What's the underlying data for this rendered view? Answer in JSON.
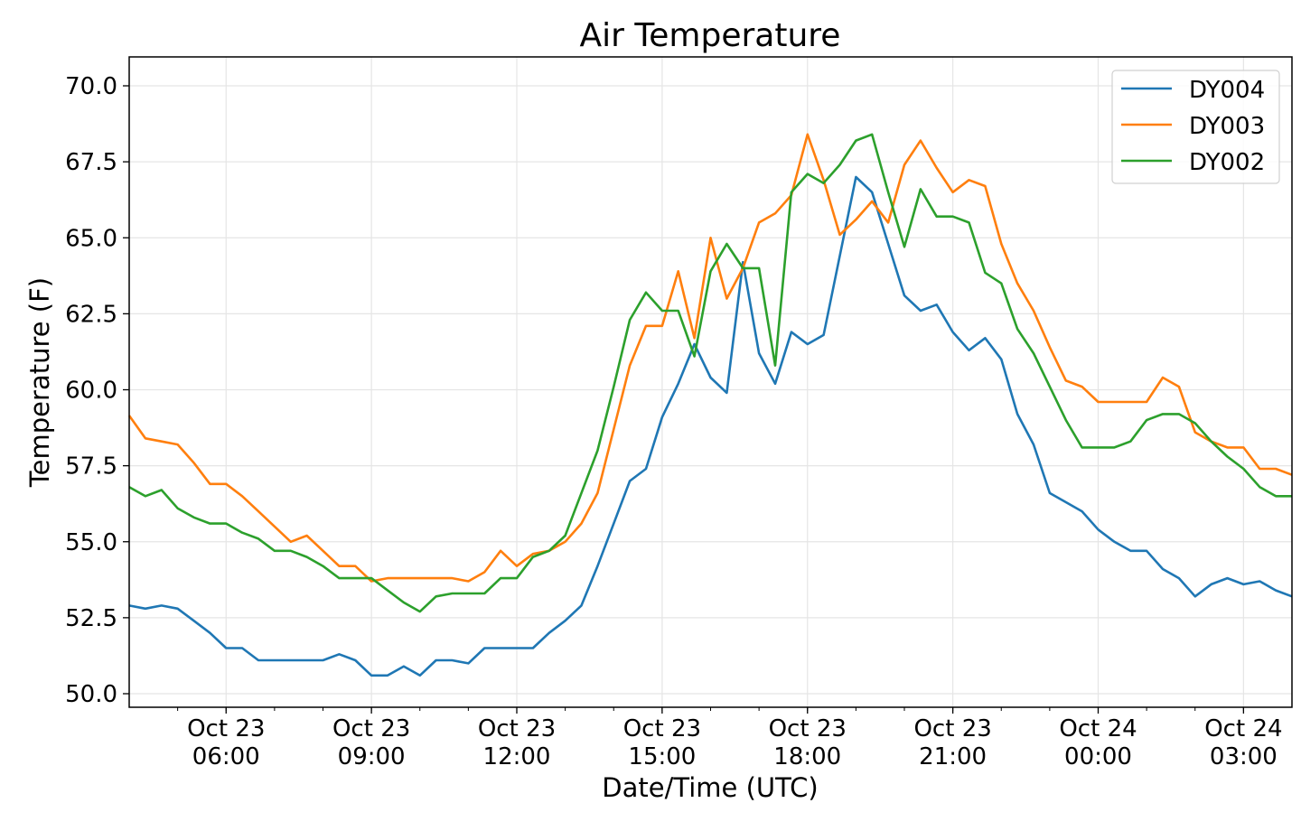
{
  "chart_data": {
    "type": "line",
    "title": "Air Temperature",
    "xlabel": "Date/Time (UTC)",
    "ylabel": "Temperature (F)",
    "x_start": "Oct 23 04:00",
    "x_interval_minutes": 20,
    "xlim_hours_from_start": [
      0,
      24
    ],
    "ylim": [
      49.6,
      71.0
    ],
    "grid": true,
    "legend_position": "top-right",
    "yticks": [
      {
        "value": 50.0,
        "label": "50.0"
      },
      {
        "value": 52.5,
        "label": "52.5"
      },
      {
        "value": 55.0,
        "label": "55.0"
      },
      {
        "value": 57.5,
        "label": "57.5"
      },
      {
        "value": 60.0,
        "label": "60.0"
      },
      {
        "value": 62.5,
        "label": "62.5"
      },
      {
        "value": 65.0,
        "label": "65.0"
      },
      {
        "value": 67.5,
        "label": "67.5"
      },
      {
        "value": 70.0,
        "label": "70.0"
      }
    ],
    "xticks": [
      {
        "hours_from_start": 2,
        "date": "Oct 23",
        "time": "06:00"
      },
      {
        "hours_from_start": 5,
        "date": "Oct 23",
        "time": "09:00"
      },
      {
        "hours_from_start": 8,
        "date": "Oct 23",
        "time": "12:00"
      },
      {
        "hours_from_start": 11,
        "date": "Oct 23",
        "time": "15:00"
      },
      {
        "hours_from_start": 14,
        "date": "Oct 23",
        "time": "18:00"
      },
      {
        "hours_from_start": 17,
        "date": "Oct 23",
        "time": "21:00"
      },
      {
        "hours_from_start": 20,
        "date": "Oct 24",
        "time": "00:00"
      },
      {
        "hours_from_start": 23,
        "date": "Oct 24",
        "time": "03:00"
      }
    ],
    "series": [
      {
        "name": "DY004",
        "color": "#1f77b4",
        "values": [
          52.9,
          52.8,
          52.9,
          52.8,
          52.4,
          52.0,
          51.5,
          51.5,
          51.1,
          51.1,
          51.1,
          51.1,
          51.1,
          51.3,
          51.1,
          50.6,
          50.6,
          50.9,
          50.6,
          51.1,
          51.1,
          51.0,
          51.5,
          51.5,
          51.5,
          51.5,
          52.0,
          52.4,
          52.9,
          54.2,
          55.6,
          57.0,
          57.4,
          59.1,
          60.2,
          61.5,
          60.4,
          59.9,
          64.2,
          61.2,
          60.2,
          61.9,
          61.5,
          61.8,
          64.4,
          67.0,
          66.5,
          64.8,
          63.1,
          62.6,
          62.8,
          61.9,
          61.3,
          61.7,
          61.0,
          59.2,
          58.2,
          56.6,
          56.3,
          56.0,
          55.4,
          55.0,
          54.7,
          54.7,
          54.1,
          53.8,
          53.2,
          53.6,
          53.8,
          53.6,
          53.7,
          53.4,
          53.2
        ]
      },
      {
        "name": "DY003",
        "color": "#ff7f0e",
        "values": [
          59.15,
          58.4,
          58.3,
          58.2,
          57.6,
          56.9,
          56.9,
          56.5,
          56.0,
          55.5,
          55.0,
          55.2,
          54.7,
          54.2,
          54.2,
          53.7,
          53.8,
          53.8,
          53.8,
          53.8,
          53.8,
          53.7,
          54.0,
          54.7,
          54.2,
          54.6,
          54.7,
          55.0,
          55.6,
          56.6,
          58.7,
          60.8,
          62.1,
          62.1,
          63.9,
          61.7,
          65.0,
          63.0,
          64.0,
          65.5,
          65.8,
          66.4,
          68.4,
          66.9,
          65.1,
          65.6,
          66.2,
          65.5,
          67.4,
          68.2,
          67.3,
          66.5,
          66.9,
          66.7,
          64.8,
          63.5,
          62.6,
          61.4,
          60.3,
          60.1,
          59.6,
          59.6,
          59.6,
          59.6,
          60.4,
          60.1,
          58.6,
          58.3,
          58.1,
          58.1,
          57.4,
          57.4,
          57.2
        ]
      },
      {
        "name": "DY002",
        "color": "#2ca02c",
        "values": [
          56.8,
          56.5,
          56.7,
          56.1,
          55.8,
          55.6,
          55.6,
          55.3,
          55.1,
          54.7,
          54.7,
          54.5,
          54.2,
          53.8,
          53.8,
          53.8,
          53.4,
          53.0,
          52.7,
          53.2,
          53.3,
          53.3,
          53.3,
          53.8,
          53.8,
          54.5,
          54.7,
          55.2,
          56.6,
          58.0,
          60.1,
          62.3,
          63.2,
          62.6,
          62.6,
          61.1,
          63.9,
          64.8,
          64.0,
          64.0,
          60.8,
          66.5,
          67.1,
          66.8,
          67.4,
          68.2,
          68.4,
          66.5,
          64.7,
          66.6,
          65.7,
          65.7,
          65.5,
          63.85,
          63.5,
          62.0,
          61.2,
          60.1,
          59.0,
          58.1,
          58.1,
          58.1,
          58.3,
          59.0,
          59.2,
          59.2,
          58.9,
          58.3,
          57.8,
          57.4,
          56.8,
          56.5,
          56.5
        ]
      }
    ]
  }
}
